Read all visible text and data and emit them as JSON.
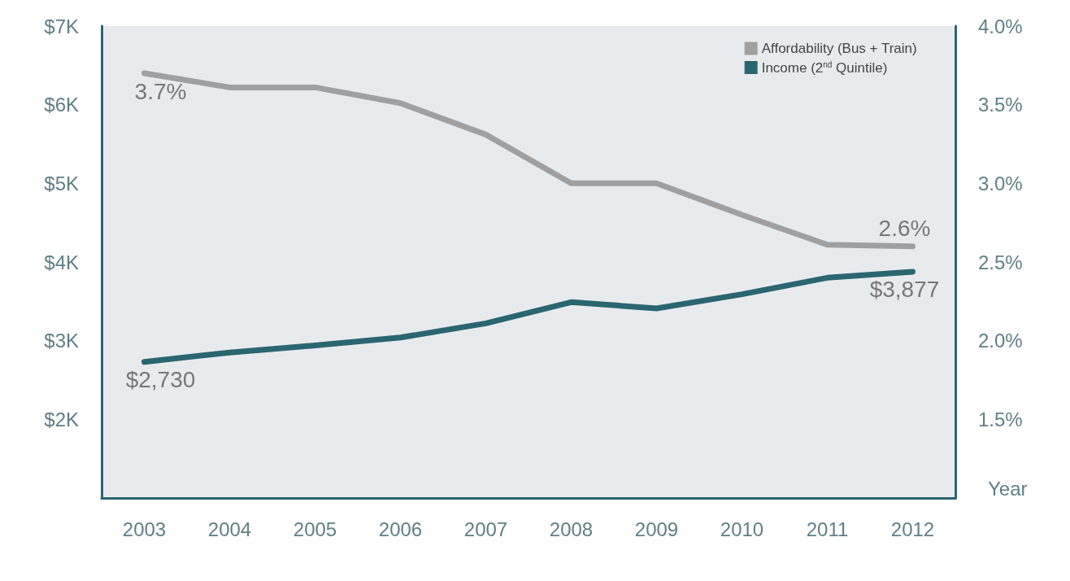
{
  "chart_data": {
    "type": "line",
    "xlabel": "Year",
    "categories": [
      "2003",
      "2004",
      "2005",
      "2006",
      "2007",
      "2008",
      "2009",
      "2010",
      "2011",
      "2012"
    ],
    "series": [
      {
        "name": "Affordability (Bus + Train)",
        "color": "#a0a0a0",
        "axis": "y2",
        "values": [
          3.7,
          3.61,
          3.61,
          3.51,
          3.31,
          3.0,
          3.0,
          2.8,
          2.61,
          2.6
        ],
        "value_labels": [
          "3.7%",
          null,
          null,
          null,
          null,
          null,
          null,
          null,
          null,
          "2.6%"
        ]
      },
      {
        "name": "Income (2$^{nd}$ Quintile)",
        "color": "#2a6670",
        "values": [
          2730,
          2850,
          2940,
          3040,
          3220,
          3490,
          3410,
          3590,
          3800,
          3877
        ],
        "value_labels": [
          "$2,730",
          null,
          null,
          null,
          null,
          null,
          null,
          null,
          null,
          "$3,877"
        ]
      }
    ],
    "ylim": [
      1000,
      7000
    ],
    "yticks": [
      {
        "value": 2000,
        "label": "$2K"
      },
      {
        "value": 3000,
        "label": "$3K"
      },
      {
        "value": 4000,
        "label": "$4K"
      },
      {
        "value": 5000,
        "label": "$5K"
      },
      {
        "value": 6000,
        "label": "$6K"
      },
      {
        "value": 7000,
        "label": "$7K"
      }
    ],
    "y2lim": [
      1.0,
      4.0
    ],
    "y2ticks": [
      {
        "value": 1.5,
        "label": "1.5%"
      },
      {
        "value": 2.0,
        "label": "2.0%"
      },
      {
        "value": 2.5,
        "label": "2.5%"
      },
      {
        "value": 3.0,
        "label": "3.0%"
      },
      {
        "value": 3.5,
        "label": "3.5%"
      },
      {
        "value": 4.0,
        "label": "4.0%"
      }
    ],
    "legend": "top right",
    "grid": false,
    "marker": "none",
    "line_style": "solid"
  }
}
